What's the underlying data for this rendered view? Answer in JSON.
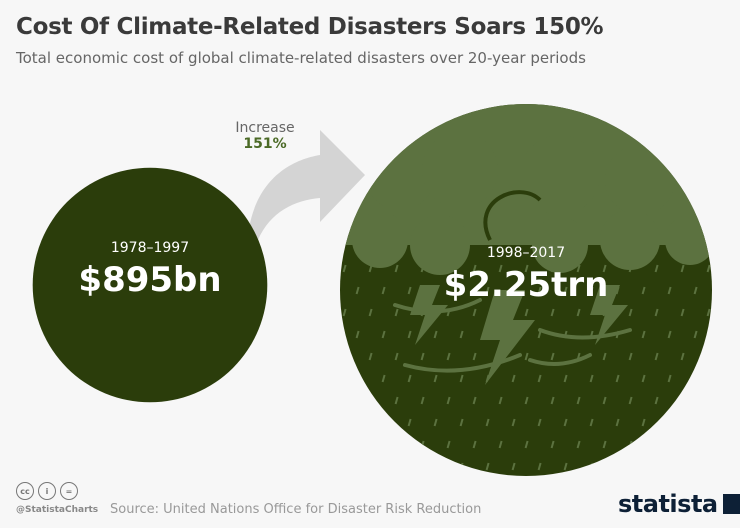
{
  "title": "Cost Of Climate-Related Disasters Soars 150%",
  "subtitle": "Total economic cost of global climate-related disasters over 20-year periods",
  "increase": {
    "label": "Increase",
    "value": "151%"
  },
  "colors": {
    "circle": "#2b3d0b",
    "cloud": "#5c7240",
    "arrow": "#d4d4d4",
    "accent": "#4b6a26"
  },
  "chart_data": {
    "type": "bubble",
    "title": "Cost Of Climate-Related Disasters Soars 150%",
    "categories": [
      "1978–1997",
      "1998–2017"
    ],
    "values": [
      895,
      2250
    ],
    "unit": "USD billions",
    "value_labels": [
      "$895bn",
      "$2.25trn"
    ]
  },
  "footer": {
    "handle": "@StatistaCharts",
    "source": "Source: United Nations Office for Disaster Risk Reduction",
    "logo": "statista",
    "cc_icons": [
      "cc",
      "by",
      "nd"
    ]
  }
}
